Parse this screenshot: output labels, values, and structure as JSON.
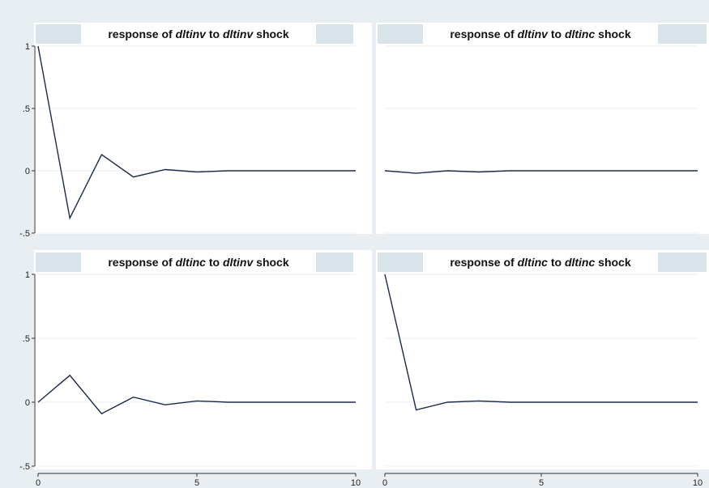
{
  "chart_data": [
    {
      "type": "line",
      "title_parts": [
        "response of ",
        "dltinv",
        " to ",
        "dltinv",
        " shock"
      ],
      "x": [
        0,
        1,
        2,
        3,
        4,
        5,
        6,
        7,
        8,
        9,
        10
      ],
      "series": [
        {
          "values": [
            1.0,
            -0.38,
            0.13,
            -0.05,
            0.01,
            -0.01,
            0.0,
            0.0,
            0.0,
            0.0,
            0.0
          ]
        }
      ],
      "xlim": [
        0,
        10
      ],
      "ylim": [
        -0.5,
        1
      ],
      "yticks": [
        "1",
        ".5",
        "0",
        "-.5"
      ],
      "xticks": [],
      "grid": true
    },
    {
      "type": "line",
      "title_parts": [
        "response of ",
        "dltinv",
        " to ",
        "dltinc",
        " shock"
      ],
      "x": [
        0,
        1,
        2,
        3,
        4,
        5,
        6,
        7,
        8,
        9,
        10
      ],
      "series": [
        {
          "values": [
            0.0,
            -0.02,
            0.0,
            -0.01,
            0.0,
            0.0,
            0.0,
            0.0,
            0.0,
            0.0,
            0.0
          ]
        }
      ],
      "xlim": [
        0,
        10
      ],
      "ylim": [
        -0.5,
        1
      ],
      "yticks": [],
      "xticks": [],
      "grid": true
    },
    {
      "type": "line",
      "title_parts": [
        "response of ",
        "dltinc",
        " to ",
        "dltinv",
        " shock"
      ],
      "x": [
        0,
        1,
        2,
        3,
        4,
        5,
        6,
        7,
        8,
        9,
        10
      ],
      "series": [
        {
          "values": [
            0.0,
            0.21,
            -0.09,
            0.04,
            -0.02,
            0.01,
            0.0,
            0.0,
            0.0,
            0.0,
            0.0
          ]
        }
      ],
      "xlim": [
        0,
        10
      ],
      "ylim": [
        -0.5,
        1
      ],
      "yticks": [
        "1",
        ".5",
        "0",
        "-.5"
      ],
      "xticks": [
        "0",
        "5",
        "10"
      ],
      "grid": true
    },
    {
      "type": "line",
      "title_parts": [
        "response of ",
        "dltinc",
        " to ",
        "dltinc",
        " shock"
      ],
      "x": [
        0,
        1,
        2,
        3,
        4,
        5,
        6,
        7,
        8,
        9,
        10
      ],
      "series": [
        {
          "values": [
            1.0,
            -0.06,
            0.0,
            0.01,
            0.0,
            0.0,
            0.0,
            0.0,
            0.0,
            0.0,
            0.0
          ]
        }
      ],
      "xlim": [
        0,
        10
      ],
      "ylim": [
        -0.5,
        1
      ],
      "yticks": [],
      "xticks": [
        "0",
        "5",
        "10"
      ],
      "grid": true
    }
  ],
  "colors": {
    "figure_background": "#e8eef2",
    "plot_background": "#ffffff",
    "title_band": "#d9e4ea",
    "line": "#1b2a4a",
    "grid": "#e9eff3"
  }
}
